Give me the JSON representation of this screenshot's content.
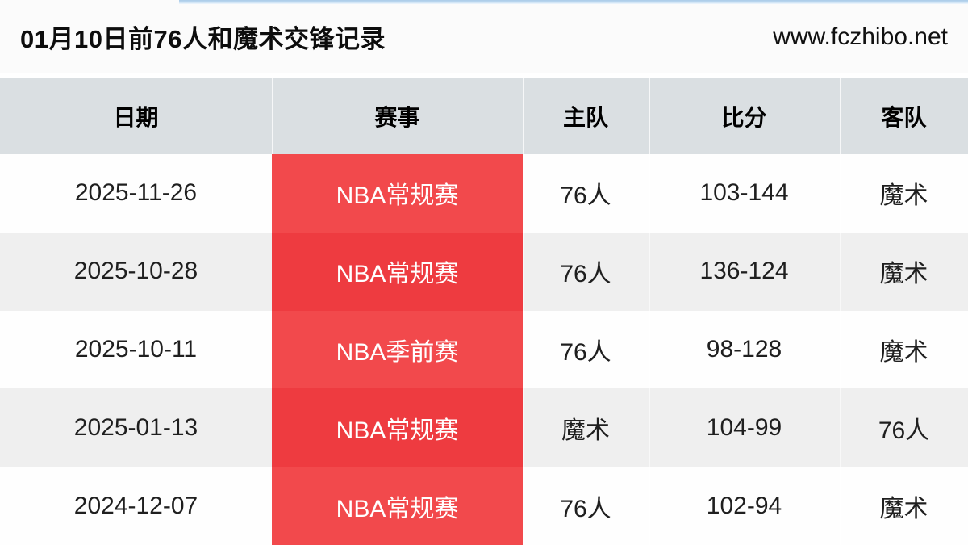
{
  "page": {
    "title": "01月10日前76人和魔术交锋记录",
    "site": "www.fczhibo.net"
  },
  "table": {
    "headers": [
      "日期",
      "赛事",
      "主队",
      "比分",
      "客队"
    ],
    "rows": [
      {
        "date": "2025-11-26",
        "event": "NBA常规赛",
        "home": "76人",
        "score": "103-144",
        "away": "魔术"
      },
      {
        "date": "2025-10-28",
        "event": "NBA常规赛",
        "home": "76人",
        "score": "136-124",
        "away": "魔术"
      },
      {
        "date": "2025-10-11",
        "event": "NBA季前赛",
        "home": "76人",
        "score": "98-128",
        "away": "魔术"
      },
      {
        "date": "2025-01-13",
        "event": "NBA常规赛",
        "home": "魔术",
        "score": "104-99",
        "away": "76人"
      },
      {
        "date": "2024-12-07",
        "event": "NBA常规赛",
        "home": "76人",
        "score": "102-94",
        "away": "魔术"
      }
    ]
  },
  "colors": {
    "accent_red": "#ee3b40",
    "accent_red_light": "#f2494c",
    "header_bg": "#dadfe2",
    "row_alt_bg": "#efefef",
    "title_bar_bg": "#fbfbfb",
    "top_line_blue": "#a9cbe8"
  }
}
